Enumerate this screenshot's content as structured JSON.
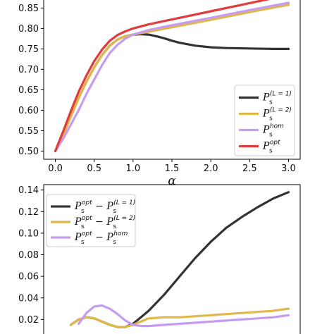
{
  "chart_data": [
    {
      "type": "line",
      "xlabel": "α",
      "xlim": [
        -0.15,
        3.15
      ],
      "ylim": [
        0.48,
        0.88
      ],
      "xticks": [
        "0.0",
        "0.5",
        "1.0",
        "1.5",
        "2.0",
        "2.5",
        "3.0"
      ],
      "yticks": [
        "0.50",
        "0.55",
        "0.60",
        "0.65",
        "0.70",
        "0.75",
        "0.80",
        "0.85"
      ],
      "legend_position": "lower-right",
      "series": [
        {
          "name": "P_s^(L=1)",
          "legend": {
            "base": "P",
            "sup": "(L = 1)",
            "sub": "s"
          },
          "color": "#333333",
          "x": [
            0.0,
            0.1,
            0.2,
            0.3,
            0.4,
            0.5,
            0.6,
            0.7,
            0.8,
            0.9,
            1.0,
            1.1,
            1.2,
            1.3,
            1.4,
            1.5,
            1.6,
            1.8,
            2.0,
            2.2,
            2.5,
            2.8,
            3.0
          ],
          "y": [
            0.5,
            0.54,
            0.585,
            0.63,
            0.67,
            0.705,
            0.735,
            0.758,
            0.773,
            0.781,
            0.785,
            0.786,
            0.785,
            0.781,
            0.776,
            0.77,
            0.765,
            0.758,
            0.754,
            0.752,
            0.751,
            0.75,
            0.75
          ]
        },
        {
          "name": "P_s^(L=2)",
          "legend": {
            "base": "P",
            "sup": "(L = 2)",
            "sub": "s"
          },
          "color": "#e0b84a",
          "x": [
            0.0,
            0.1,
            0.2,
            0.3,
            0.4,
            0.5,
            0.6,
            0.7,
            0.8,
            0.9,
            1.0,
            1.2,
            1.5,
            2.0,
            2.5,
            3.0
          ],
          "y": [
            0.5,
            0.54,
            0.585,
            0.63,
            0.67,
            0.705,
            0.735,
            0.758,
            0.773,
            0.781,
            0.785,
            0.792,
            0.803,
            0.821,
            0.84,
            0.858
          ]
        },
        {
          "name": "P_s^hom",
          "legend": {
            "base": "P",
            "sup": "hom",
            "sub": "s"
          },
          "color": "#c59cf0",
          "x": [
            0.0,
            0.1,
            0.2,
            0.3,
            0.4,
            0.5,
            0.6,
            0.7,
            0.8,
            0.9,
            1.0,
            1.2,
            1.5,
            2.0,
            2.5,
            3.0
          ],
          "y": [
            0.5,
            0.53,
            0.565,
            0.6,
            0.64,
            0.675,
            0.71,
            0.74,
            0.76,
            0.775,
            0.785,
            0.796,
            0.808,
            0.826,
            0.845,
            0.863
          ]
        },
        {
          "name": "P_s^opt",
          "legend": {
            "base": "P",
            "sup": "opt",
            "sub": "s"
          },
          "color": "#e03c3c",
          "x": [
            0.0,
            0.1,
            0.2,
            0.3,
            0.4,
            0.5,
            0.6,
            0.7,
            0.8,
            0.9,
            1.0,
            1.2,
            1.5,
            2.0,
            2.5,
            3.0
          ],
          "y": [
            0.5,
            0.548,
            0.598,
            0.645,
            0.685,
            0.72,
            0.748,
            0.77,
            0.784,
            0.793,
            0.8,
            0.81,
            0.822,
            0.842,
            0.862,
            0.882
          ]
        }
      ]
    },
    {
      "type": "line",
      "xlim": [
        -0.15,
        3.15
      ],
      "ylim": [
        0.0,
        0.145
      ],
      "yticks": [
        "0.02",
        "0.04",
        "0.06",
        "0.08",
        "0.10",
        "0.12",
        "0.14"
      ],
      "legend_position": "upper-left",
      "series": [
        {
          "name": "P_s^opt - P_s^(L=1)",
          "legend": {
            "base": "P",
            "sup": "opt",
            "sub": "s",
            "minus": "−",
            "base2": "P",
            "sup2": "(L = 1)",
            "sub2": "s"
          },
          "color": "#333333",
          "x": [
            0.2,
            0.3,
            0.4,
            0.5,
            0.6,
            0.7,
            0.8,
            0.9,
            1.0,
            1.1,
            1.2,
            1.4,
            1.6,
            1.8,
            2.0,
            2.2,
            2.4,
            2.6,
            2.8,
            3.0
          ],
          "y": [
            0.015,
            0.02,
            0.022,
            0.021,
            0.018,
            0.015,
            0.013,
            0.013,
            0.016,
            0.022,
            0.028,
            0.043,
            0.06,
            0.077,
            0.092,
            0.105,
            0.115,
            0.124,
            0.132,
            0.138
          ]
        },
        {
          "name": "P_s^opt - P_s^(L=2)",
          "legend": {
            "base": "P",
            "sup": "opt",
            "sub": "s",
            "minus": "−",
            "base2": "P",
            "sup2": "(L = 2)",
            "sub2": "s"
          },
          "color": "#e0b84a",
          "x": [
            0.2,
            0.3,
            0.4,
            0.5,
            0.6,
            0.7,
            0.8,
            0.9,
            1.0,
            1.1,
            1.2,
            1.4,
            1.6,
            1.8,
            2.0,
            2.2,
            2.4,
            2.6,
            2.8,
            3.0
          ],
          "y": [
            0.015,
            0.02,
            0.022,
            0.021,
            0.018,
            0.015,
            0.013,
            0.013,
            0.015,
            0.018,
            0.021,
            0.022,
            0.022,
            0.023,
            0.024,
            0.025,
            0.026,
            0.027,
            0.028,
            0.03
          ]
        },
        {
          "name": "P_s^opt - P_s^hom",
          "legend": {
            "base": "P",
            "sup": "opt",
            "sub": "s",
            "minus": "−",
            "base2": "P",
            "sup2": "hom",
            "sub2": "s"
          },
          "color": "#c59cf0",
          "x": [
            0.3,
            0.4,
            0.5,
            0.6,
            0.7,
            0.8,
            0.9,
            1.0,
            1.1,
            1.2,
            1.4,
            1.6,
            1.8,
            2.0,
            2.2,
            2.4,
            2.6,
            2.8,
            3.0
          ],
          "y": [
            0.016,
            0.026,
            0.032,
            0.033,
            0.03,
            0.025,
            0.019,
            0.015,
            0.014,
            0.014,
            0.015,
            0.016,
            0.017,
            0.018,
            0.019,
            0.02,
            0.021,
            0.022,
            0.024
          ]
        }
      ]
    }
  ]
}
